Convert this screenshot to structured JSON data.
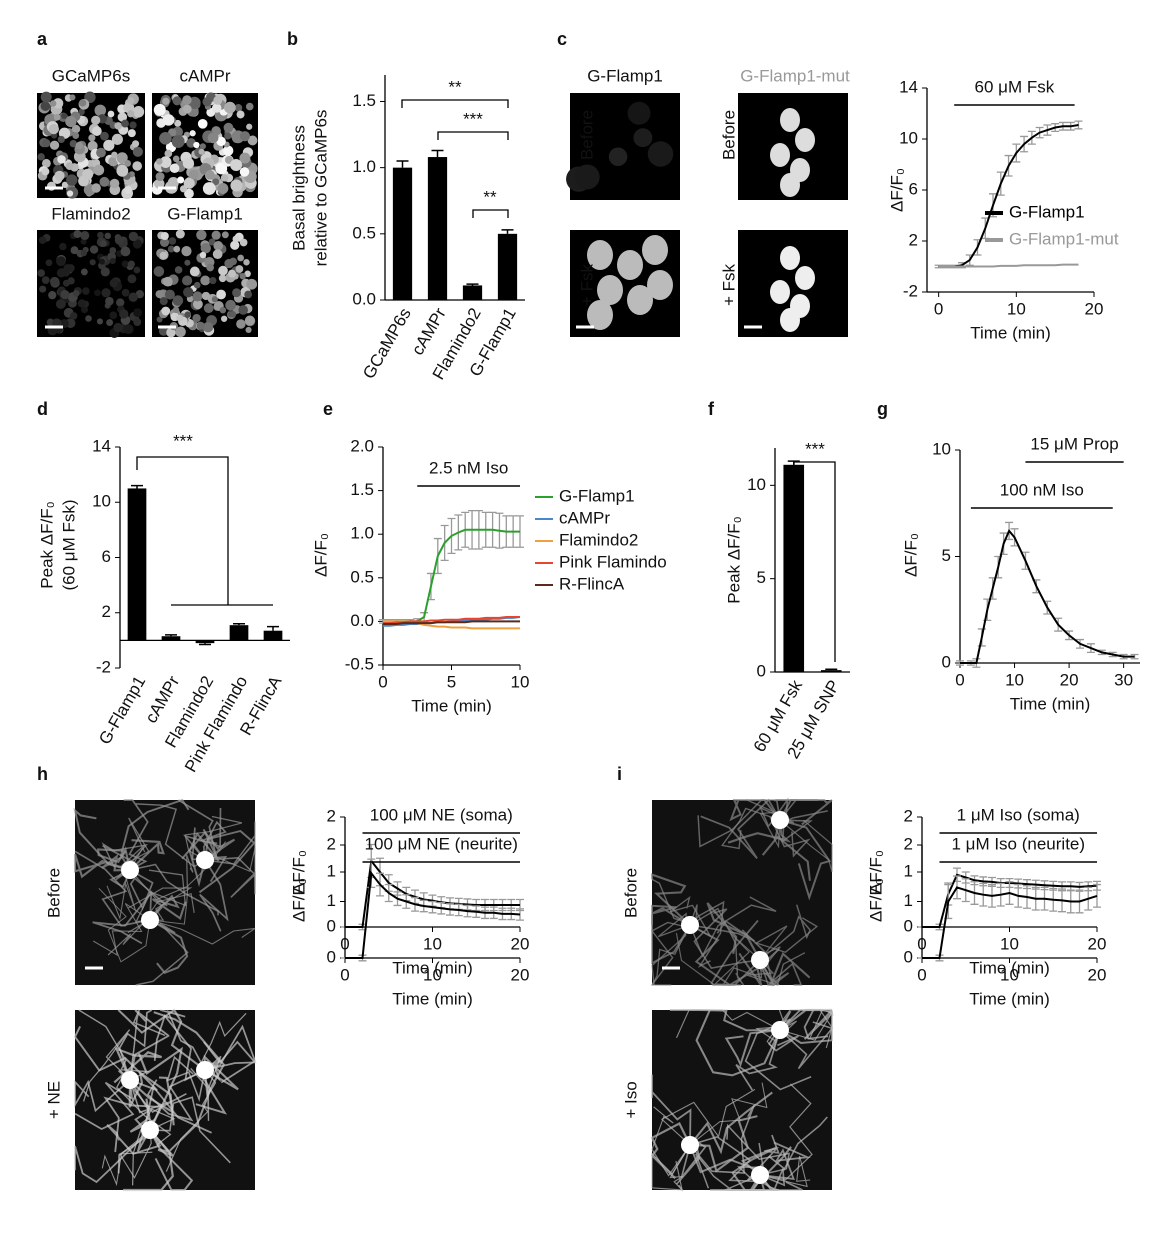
{
  "panel_letters": [
    "a",
    "b",
    "c",
    "d",
    "e",
    "f",
    "g",
    "h",
    "i"
  ],
  "image_labels": {
    "a": [
      "GCaMP6s",
      "cAMPr",
      "Flamindo2",
      "G-Flamp1"
    ],
    "c": [
      "G-Flamp1",
      "G-Flamp1-mut",
      "Before",
      "Before",
      "+ Fsk",
      "+ Fsk"
    ],
    "h": [
      "Before",
      "+ NE"
    ],
    "i": [
      "Before",
      "+ Iso"
    ]
  },
  "chart_data": [
    {
      "type": "bar",
      "ylabel": [
        "Basal brightness",
        "relative to GCaMP6s"
      ],
      "categories": [
        "GCaMP6s",
        "cAMPr",
        "Flamindo2",
        "G-Flamp1"
      ],
      "values": [
        1.0,
        1.08,
        0.11,
        0.5
      ],
      "errors": [
        0.05,
        0.05,
        0.01,
        0.03
      ],
      "color": "#000000",
      "ylim": [
        0,
        1.7
      ],
      "yticks": [
        {
          "value": 0,
          "label": "0.0"
        },
        0.5,
        {
          "value": 1,
          "label": "1.0"
        },
        1.5
      ],
      "significance": [
        "**",
        "***",
        "**"
      ]
    },
    {
      "type": "line",
      "xlabel": "Time (min)",
      "ylabel": "ΔF/F₀",
      "x": [
        0,
        1,
        2,
        3,
        4,
        5,
        6,
        7,
        8,
        9,
        10,
        11,
        12,
        13,
        14,
        15,
        16,
        17,
        18
      ],
      "series": [
        {
          "name": "G-Flamp1",
          "color": "#000000",
          "values": [
            0,
            0,
            0,
            0.1,
            0.5,
            1.5,
            3.0,
            4.8,
            6.5,
            7.9,
            8.9,
            9.6,
            10.1,
            10.5,
            10.7,
            10.9,
            11.0,
            11.0,
            11.1
          ],
          "errors": [
            0.1,
            0.1,
            0.1,
            0.2,
            0.4,
            0.6,
            0.8,
            0.9,
            0.9,
            0.8,
            0.7,
            0.6,
            0.5,
            0.4,
            0.4,
            0.3,
            0.3,
            0.3,
            0.3
          ]
        },
        {
          "name": "G-Flamp1-mut",
          "color": "#999999",
          "values": [
            0,
            0,
            0,
            0,
            0,
            0,
            0,
            0,
            0.05,
            0.05,
            0.05,
            0.1,
            0.1,
            0.1,
            0.1,
            0.1,
            0.15,
            0.15,
            0.15
          ]
        }
      ],
      "xlim": [
        -1.5,
        20
      ],
      "xticks": [
        0,
        10,
        20
      ],
      "ylim": [
        -2,
        14
      ],
      "yticks": [
        -2,
        2,
        6,
        10,
        14
      ],
      "annotations": [
        {
          "text": "60 μM Fsk",
          "start": 2,
          "end": 17.5
        }
      ]
    },
    {
      "type": "bar",
      "ylabel": [
        "Peak ΔF/F₀",
        "(60 μM Fsk)"
      ],
      "categories": [
        "G-Flamp1",
        "cAMPr",
        "Flamindo2",
        "Pink Flamindo",
        "R-FlincA"
      ],
      "values": [
        11.0,
        0.3,
        -0.2,
        1.1,
        0.7
      ],
      "errors": [
        0.2,
        0.1,
        0.1,
        0.1,
        0.3
      ],
      "color": "#000000",
      "ylim": [
        -2,
        14
      ],
      "yticks": [
        -2,
        2,
        6,
        10,
        14
      ],
      "significance": [
        "***"
      ]
    },
    {
      "type": "line",
      "xlabel": "Time (min)",
      "ylabel": "ΔF/F₀",
      "x": [
        0,
        0.5,
        1,
        1.5,
        2,
        2.5,
        3,
        3.5,
        4,
        4.5,
        5,
        5.5,
        6,
        6.5,
        7,
        7.5,
        8,
        8.5,
        9,
        9.5,
        10
      ],
      "series": [
        {
          "name": "G-Flamp1",
          "color": "#2ca02c",
          "values": [
            0,
            0,
            0,
            0,
            0,
            0,
            0.05,
            0.4,
            0.75,
            0.9,
            0.98,
            1.02,
            1.05,
            1.05,
            1.05,
            1.05,
            1.05,
            1.04,
            1.03,
            1.03,
            1.03
          ],
          "errors": [
            0.02,
            0.02,
            0.02,
            0.02,
            0.02,
            0.03,
            0.05,
            0.15,
            0.2,
            0.2,
            0.2,
            0.2,
            0.2,
            0.22,
            0.22,
            0.2,
            0.2,
            0.2,
            0.18,
            0.18,
            0.18
          ]
        },
        {
          "name": "cAMPr",
          "color": "#4a86c8",
          "values": [
            -0.05,
            -0.05,
            -0.04,
            -0.04,
            -0.03,
            -0.03,
            -0.02,
            -0.02,
            -0.01,
            -0.01,
            0,
            0,
            0.01,
            0.01,
            0.02,
            0.02,
            0.03,
            0.03,
            0.04,
            0.04,
            0.05
          ]
        },
        {
          "name": "Flamindo2",
          "color": "#f0a040",
          "values": [
            0,
            0,
            0,
            0,
            0,
            -0.02,
            -0.04,
            -0.05,
            -0.06,
            -0.06,
            -0.07,
            -0.07,
            -0.07,
            -0.08,
            -0.08,
            -0.08,
            -0.08,
            -0.08,
            -0.08,
            -0.08,
            -0.08
          ]
        },
        {
          "name": "Pink Flamindo",
          "color": "#e8452c",
          "values": [
            -0.02,
            -0.02,
            -0.01,
            -0.01,
            0,
            0,
            0,
            0.01,
            0.01,
            0.02,
            0.02,
            0.02,
            0.03,
            0.03,
            0.03,
            0.04,
            0.04,
            0.04,
            0.05,
            0.05,
            0.05
          ]
        },
        {
          "name": "R-FlincA",
          "color": "#5a2a1a",
          "values": [
            -0.03,
            -0.03,
            -0.03,
            -0.02,
            -0.02,
            -0.02,
            -0.02,
            -0.02,
            -0.01,
            -0.01,
            -0.01,
            -0.01,
            -0.01,
            0,
            0,
            0,
            0,
            0,
            0,
            0,
            0
          ]
        }
      ],
      "xlim": [
        0,
        10
      ],
      "xticks": [
        0,
        5,
        10
      ],
      "ylim": [
        -0.5,
        2
      ],
      "yticks": [
        -0.5,
        {
          "value": 0,
          "label": "0.0"
        },
        0.5,
        {
          "value": 1,
          "label": "1.0"
        },
        1.5,
        {
          "value": 2,
          "label": "2.0"
        }
      ],
      "annotations": [
        {
          "text": "2.5 nM Iso",
          "start": 2.5,
          "end": 10
        }
      ]
    },
    {
      "type": "bar",
      "ylabel": "Peak ΔF/F₀",
      "categories": [
        "60 μM Fsk",
        "25 μM SNP"
      ],
      "values": [
        11.1,
        0.1
      ],
      "errors": [
        0.2,
        0.05
      ],
      "color": "#000000",
      "ylim": [
        0,
        12
      ],
      "yticks": [
        0,
        5,
        10
      ],
      "significance": [
        "***"
      ]
    },
    {
      "type": "line",
      "xlabel": "Time (min)",
      "ylabel": "ΔF/F₀",
      "x": [
        0,
        2,
        3,
        4,
        5,
        6,
        7,
        8,
        9,
        10,
        12,
        14,
        16,
        18,
        20,
        22,
        24,
        26,
        28,
        30,
        32
      ],
      "series": [
        {
          "name": "100 nM Iso",
          "color": "#000000",
          "values": [
            0,
            0,
            0,
            1.2,
            2.5,
            3.5,
            4.5,
            5.6,
            6.2,
            5.9,
            4.8,
            3.6,
            2.6,
            1.8,
            1.3,
            0.9,
            0.7,
            0.5,
            0.4,
            0.3,
            0.3
          ],
          "errors": [
            0.1,
            0.1,
            0.2,
            0.4,
            0.5,
            0.5,
            0.5,
            0.5,
            0.4,
            0.4,
            0.4,
            0.3,
            0.3,
            0.3,
            0.2,
            0.2,
            0.2,
            0.1,
            0.1,
            0.1,
            0.1
          ]
        }
      ],
      "xlim": [
        0,
        33
      ],
      "xticks": [
        0,
        10,
        20,
        30
      ],
      "ylim": [
        0,
        10
      ],
      "yticks": [
        0,
        5,
        10
      ],
      "annotations": [
        {
          "text": "15 μM Prop",
          "start": 12,
          "end": 30
        },
        {
          "text": "100 nM Iso",
          "start": 2,
          "end": 28
        }
      ]
    },
    {
      "type": "line",
      "xlabel": "Time (min)",
      "ylabel": "ΔF/F₀",
      "x": [
        0,
        1,
        2,
        3,
        4,
        5,
        6,
        7,
        8,
        9,
        10,
        11,
        12,
        13,
        14,
        15,
        16,
        17,
        18,
        19,
        20
      ],
      "series": [
        {
          "name": "soma",
          "color": "#000000",
          "values": [
            0,
            0,
            0,
            1.2,
            1.0,
            0.8,
            0.7,
            0.6,
            0.55,
            0.5,
            0.48,
            0.45,
            0.43,
            0.42,
            0.41,
            0.4,
            0.4,
            0.4,
            0.4,
            0.4,
            0.4
          ],
          "errors": [
            0,
            0,
            0.05,
            0.3,
            0.25,
            0.15,
            0.12,
            0.12,
            0.12,
            0.12,
            0.1,
            0.1,
            0.1,
            0.1,
            0.1,
            0.1,
            0.1,
            0.1,
            0.1,
            0.1,
            0.1
          ]
        }
      ],
      "xlim": [
        0,
        20
      ],
      "xticks": [
        0,
        10,
        20
      ],
      "ylim": [
        0,
        2
      ],
      "yticks": [
        0,
        1,
        2
      ],
      "annotations": [
        {
          "text": "100 μM NE (soma)",
          "start": 2,
          "end": 20
        }
      ]
    },
    {
      "type": "line",
      "xlabel": "Time (min)",
      "ylabel": "ΔF/F₀",
      "x": [
        0,
        1,
        2,
        3,
        4,
        5,
        6,
        7,
        8,
        9,
        10,
        11,
        12,
        13,
        14,
        15,
        16,
        17,
        18,
        19,
        20
      ],
      "series": [
        {
          "name": "neurite",
          "color": "#000000",
          "values": [
            0,
            0,
            0,
            1.5,
            1.3,
            1.15,
            1.05,
            1.0,
            0.95,
            0.92,
            0.9,
            0.88,
            0.86,
            0.85,
            0.83,
            0.82,
            0.8,
            0.8,
            0.78,
            0.78,
            0.77
          ],
          "errors": [
            0,
            0,
            0.05,
            0.25,
            0.2,
            0.15,
            0.12,
            0.12,
            0.12,
            0.1,
            0.1,
            0.1,
            0.1,
            0.1,
            0.1,
            0.1,
            0.1,
            0.1,
            0.1,
            0.1,
            0.1
          ]
        }
      ],
      "xlim": [
        0,
        20
      ],
      "xticks": [
        0,
        10,
        20
      ],
      "ylim": [
        0,
        2
      ],
      "yticks": [
        0,
        1,
        2
      ],
      "annotations": [
        {
          "text": "100 μM NE (neurite)",
          "start": 2,
          "end": 20
        }
      ]
    },
    {
      "type": "line",
      "xlabel": "Time (min)",
      "ylabel": "ΔF/F₀",
      "x": [
        0,
        1,
        2,
        3,
        4,
        5,
        6,
        7,
        8,
        9,
        10,
        11,
        12,
        13,
        14,
        15,
        16,
        17,
        18,
        19,
        20
      ],
      "series": [
        {
          "name": "soma",
          "color": "#000000",
          "values": [
            0,
            0,
            0,
            0.6,
            0.95,
            0.9,
            0.85,
            0.83,
            0.82,
            0.8,
            0.8,
            0.79,
            0.78,
            0.77,
            0.76,
            0.75,
            0.74,
            0.74,
            0.73,
            0.74,
            0.75
          ],
          "errors": [
            0,
            0,
            0.05,
            0.2,
            0.12,
            0.1,
            0.08,
            0.08,
            0.08,
            0.08,
            0.08,
            0.08,
            0.08,
            0.08,
            0.08,
            0.08,
            0.08,
            0.08,
            0.08,
            0.08,
            0.08
          ]
        }
      ],
      "xlim": [
        0,
        20
      ],
      "xticks": [
        0,
        10,
        20
      ],
      "ylim": [
        0,
        2
      ],
      "yticks": [
        0,
        1,
        2
      ],
      "annotations": [
        {
          "text": "1 μM Iso (soma)",
          "start": 2,
          "end": 20
        }
      ]
    },
    {
      "type": "line",
      "xlabel": "Time (min)",
      "ylabel": "ΔF/F₀",
      "x": [
        0,
        1,
        2,
        3,
        4,
        5,
        6,
        7,
        8,
        9,
        10,
        11,
        12,
        13,
        14,
        15,
        16,
        17,
        18,
        19,
        20
      ],
      "series": [
        {
          "name": "neurite",
          "color": "#000000",
          "values": [
            0,
            0,
            0,
            1.0,
            1.25,
            1.2,
            1.15,
            1.12,
            1.1,
            1.12,
            1.15,
            1.1,
            1.08,
            1.05,
            1.05,
            1.03,
            1.02,
            1.0,
            1.0,
            1.05,
            1.1
          ],
          "errors": [
            0,
            0,
            0.05,
            0.3,
            0.2,
            0.2,
            0.2,
            0.2,
            0.2,
            0.2,
            0.2,
            0.2,
            0.2,
            0.2,
            0.2,
            0.2,
            0.2,
            0.2,
            0.2,
            0.2,
            0.2
          ]
        }
      ],
      "xlim": [
        0,
        20
      ],
      "xticks": [
        0,
        10,
        20
      ],
      "ylim": [
        0,
        2
      ],
      "yticks": [
        0,
        1,
        2
      ],
      "annotations": [
        {
          "text": "1 μM Iso (neurite)",
          "start": 2,
          "end": 20
        }
      ]
    }
  ]
}
